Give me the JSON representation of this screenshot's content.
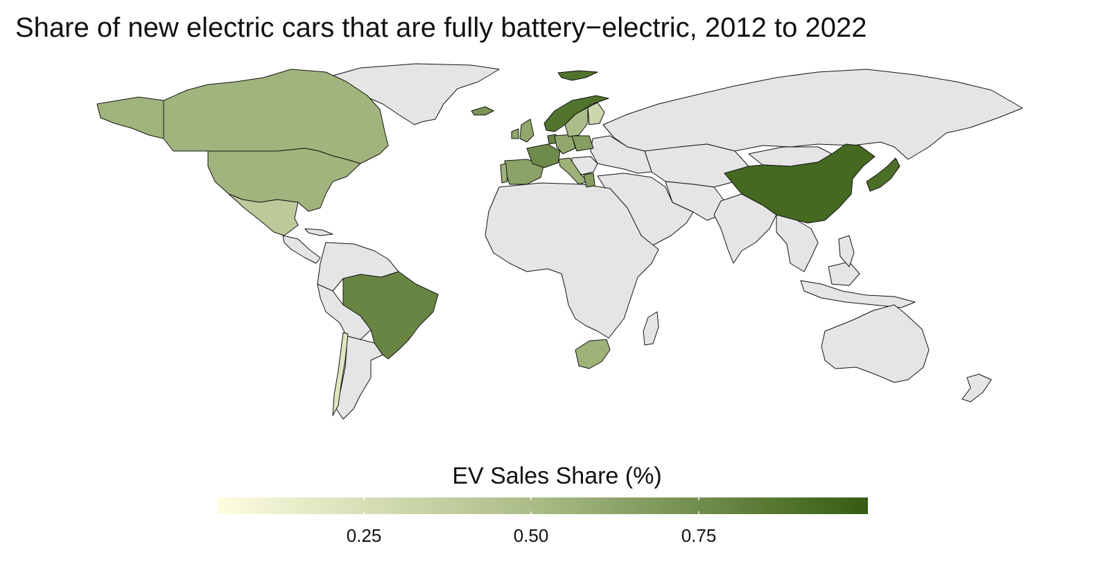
{
  "title": "Share of new electric cars that are fully battery−electric, 2012 to 2022",
  "legend": {
    "title": "EV Sales Share (%)",
    "ticks": [
      "0.25",
      "0.50",
      "0.75"
    ],
    "color_low": "#fdfde0",
    "color_high": "#355c11"
  },
  "colors": {
    "no_data": "#e5e5e5",
    "border": "#111111",
    "ocean": "#ffffff"
  },
  "chart_data": {
    "type": "choropleth",
    "variable": "EV Sales Share (%)",
    "range": [
      0,
      1
    ],
    "regions": [
      {
        "name": "Canada",
        "value": 0.53
      },
      {
        "name": "United States",
        "value": 0.53
      },
      {
        "name": "Mexico",
        "value": 0.38
      },
      {
        "name": "Brazil",
        "value": 0.78
      },
      {
        "name": "Chile",
        "value": 0.18
      },
      {
        "name": "Spain",
        "value": 0.62
      },
      {
        "name": "Portugal",
        "value": 0.55
      },
      {
        "name": "France",
        "value": 0.75
      },
      {
        "name": "Belgium",
        "value": 0.55
      },
      {
        "name": "Netherlands",
        "value": 0.78
      },
      {
        "name": "United Kingdom",
        "value": 0.6
      },
      {
        "name": "Ireland",
        "value": 0.6
      },
      {
        "name": "Germany",
        "value": 0.6
      },
      {
        "name": "Poland",
        "value": 0.65
      },
      {
        "name": "Switzerland",
        "value": 0.6
      },
      {
        "name": "Italy",
        "value": 0.55
      },
      {
        "name": "Greece",
        "value": 0.65
      },
      {
        "name": "Norway",
        "value": 0.88
      },
      {
        "name": "Sweden",
        "value": 0.48
      },
      {
        "name": "Finland",
        "value": 0.28
      },
      {
        "name": "Denmark",
        "value": 0.7
      },
      {
        "name": "Iceland",
        "value": 0.7
      },
      {
        "name": "Svalbard",
        "value": 0.88
      },
      {
        "name": "China",
        "value": 0.93
      },
      {
        "name": "Japan",
        "value": 0.9
      },
      {
        "name": "South Africa",
        "value": 0.55
      }
    ]
  }
}
